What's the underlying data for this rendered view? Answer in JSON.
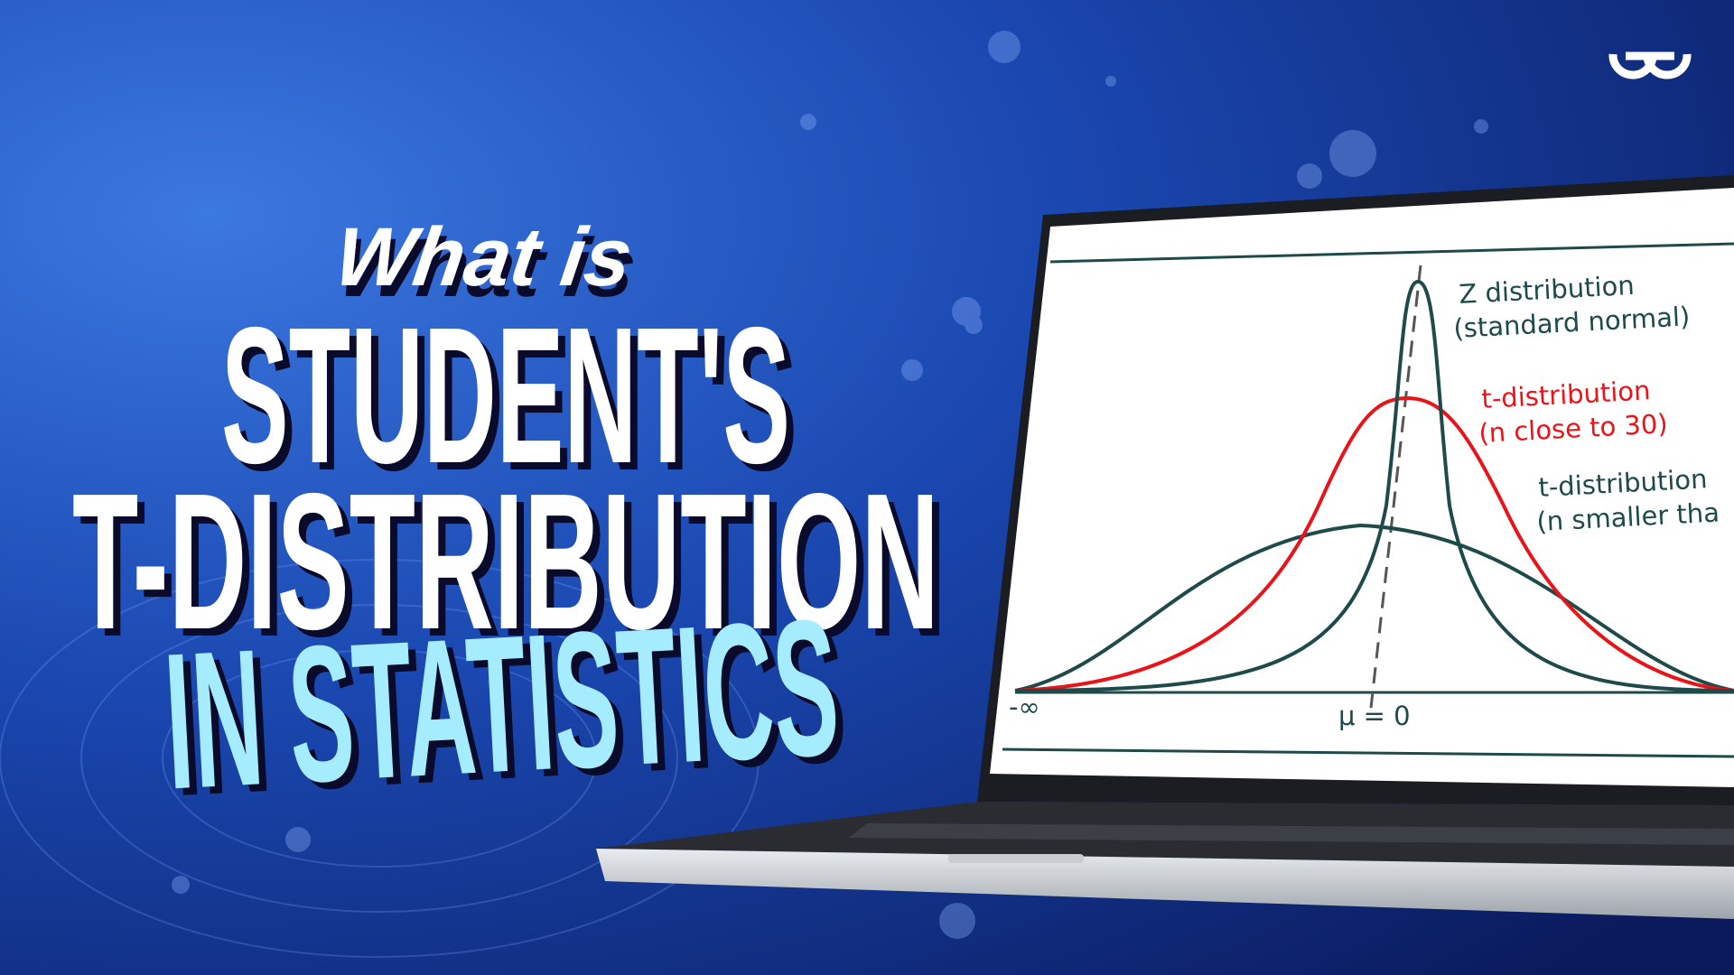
{
  "headline": {
    "intro": "What is",
    "line1": "STUDENT'S",
    "line2": "T-DISTRIBUTION",
    "line3": "IN STATISTICS"
  },
  "screen": {
    "z_label": [
      "Z distribution",
      "(standard normal)"
    ],
    "t30_label": [
      "t-distribution",
      "(n close to 30)"
    ],
    "tsmall_label": [
      "t-distribution",
      "(n smaller tha"
    ],
    "x_left": "-∞",
    "x_mean": "μ = 0"
  }
}
